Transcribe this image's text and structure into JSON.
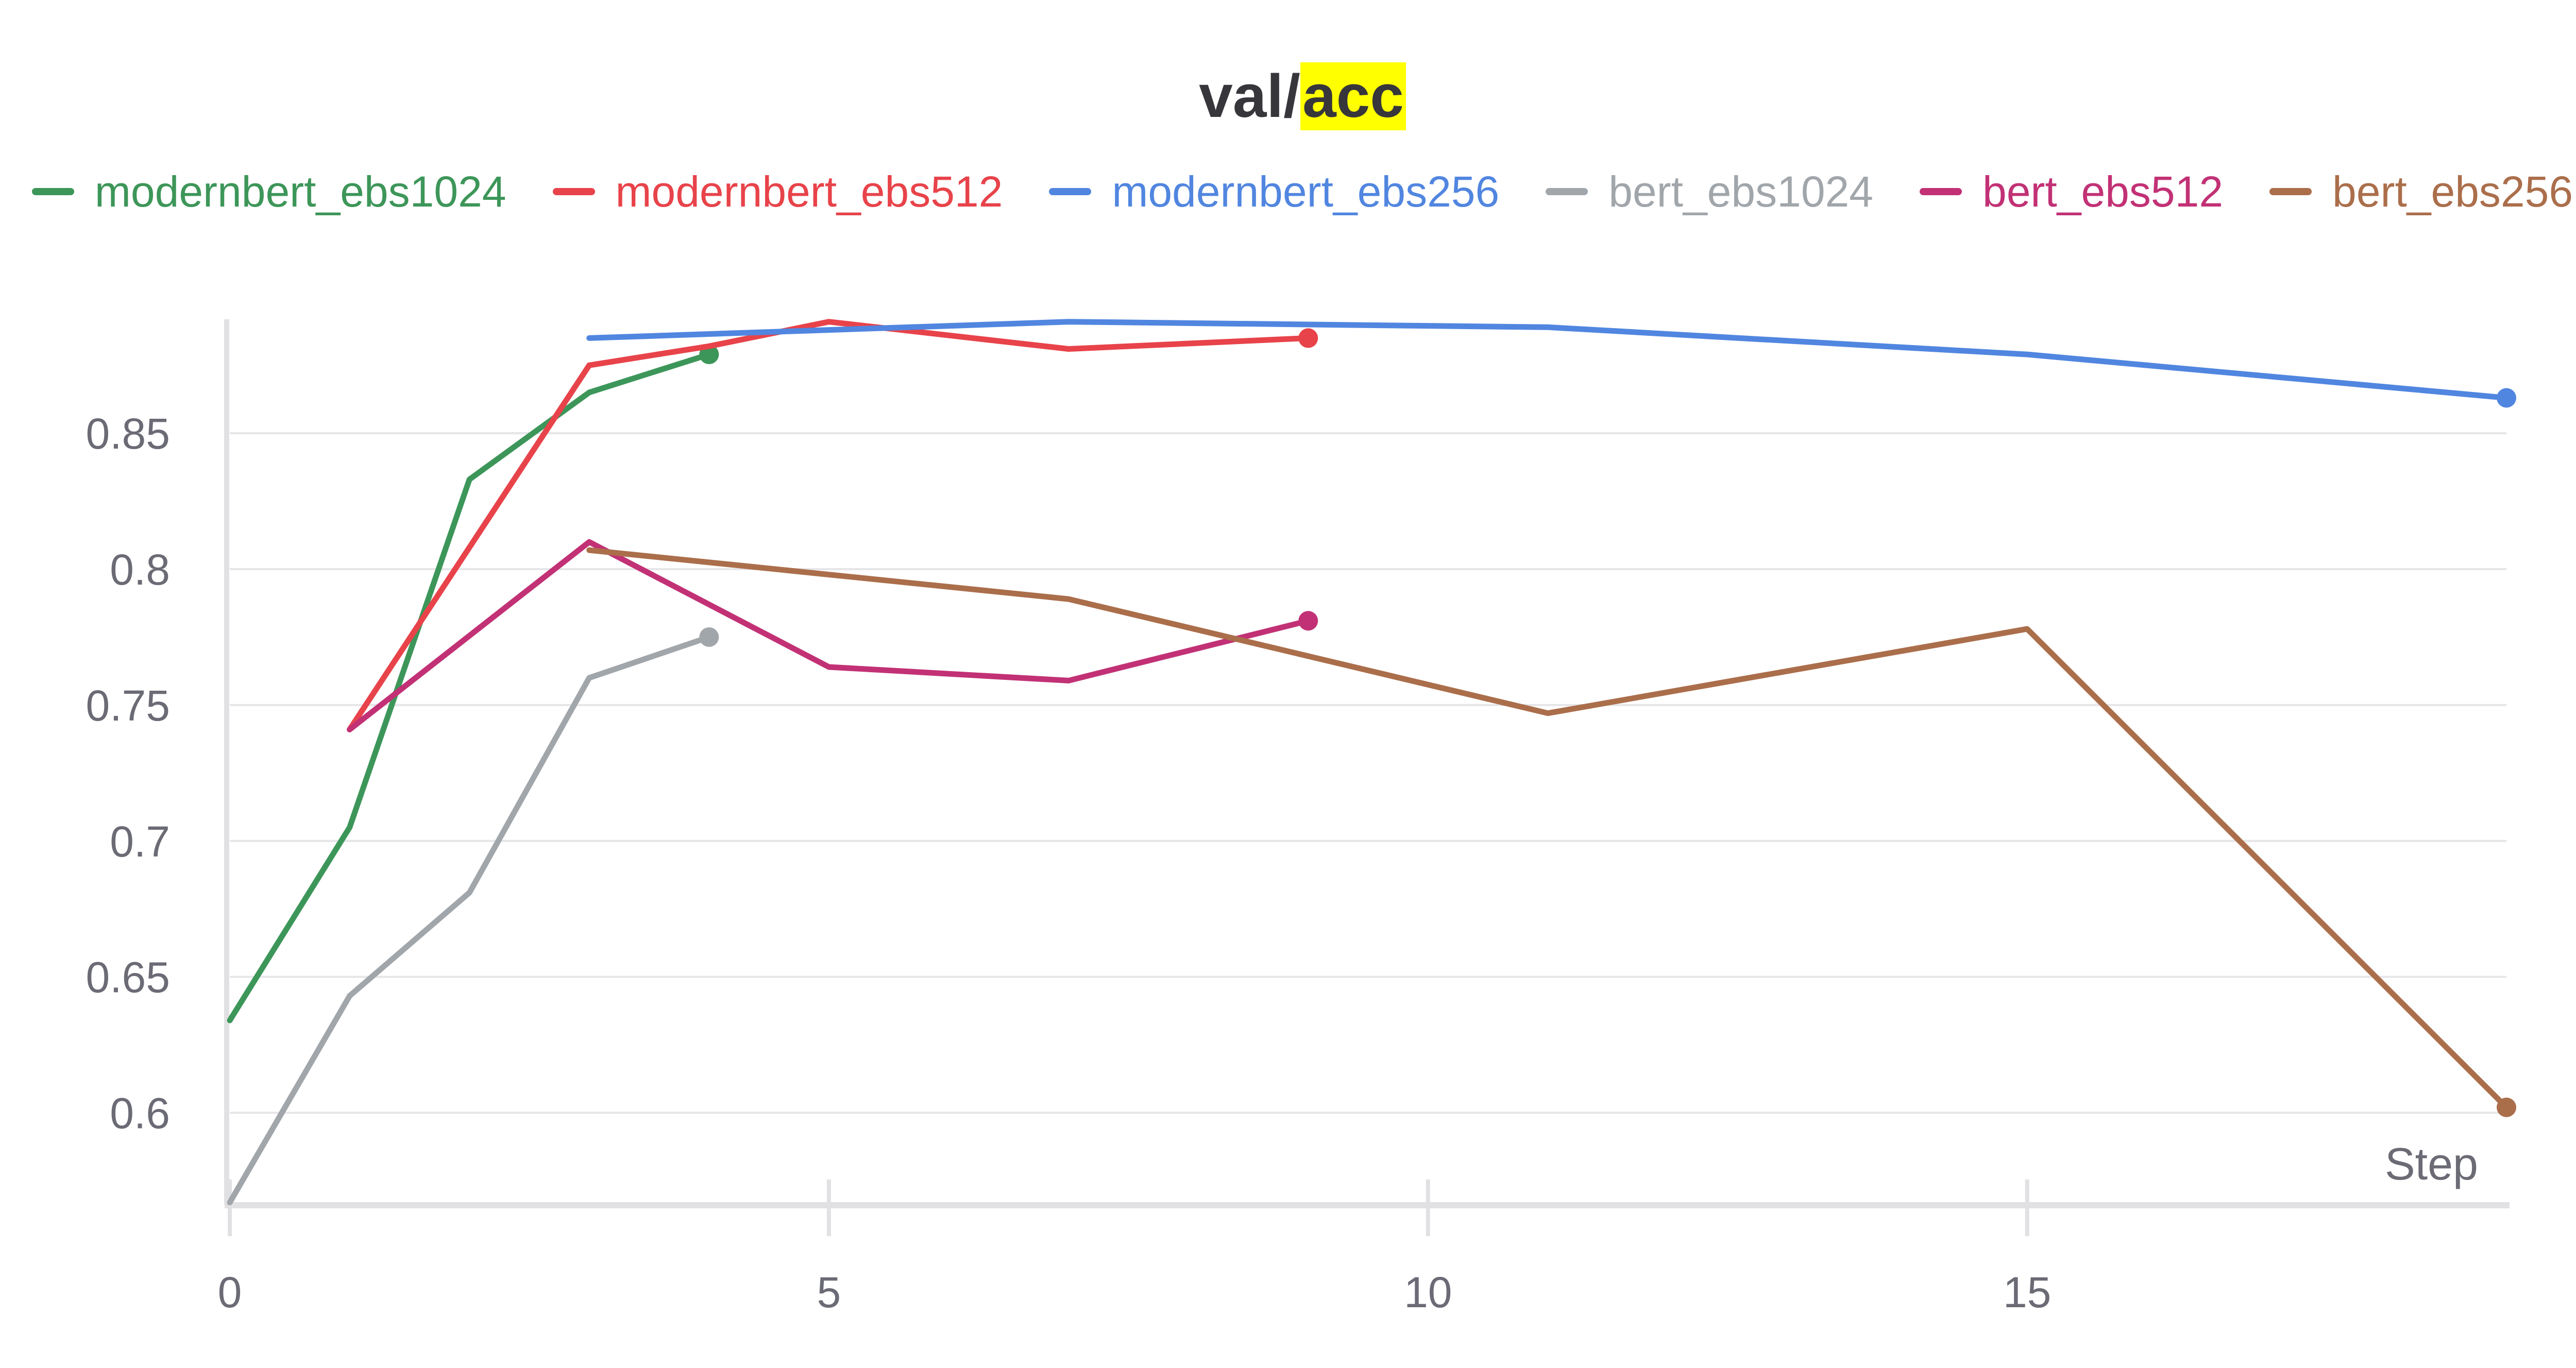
{
  "chart_data": {
    "type": "line",
    "title_prefix": "val/",
    "title_highlight": "acc",
    "xlabel": "Step",
    "ylabel": "",
    "xlim": [
      0,
      19
    ],
    "ylim": [
      0.566,
      0.89
    ],
    "xticks": [
      0,
      5,
      10,
      15
    ],
    "yticks": [
      0.6,
      0.65,
      0.7,
      0.75,
      0.8,
      0.85
    ],
    "ytick_labels": [
      "0.6",
      "0.65",
      "0.7",
      "0.75",
      "0.8",
      "0.85"
    ],
    "grid": true,
    "legend_position": "top-center",
    "series": [
      {
        "name": "modernbert_ebs1024",
        "color": "#3d9659",
        "x": [
          0,
          1,
          2,
          3,
          4
        ],
        "y": [
          0.634,
          0.705,
          0.833,
          0.865,
          0.879
        ]
      },
      {
        "name": "modernbert_ebs512",
        "color": "#e8434a",
        "x": [
          1,
          3,
          4,
          5,
          7,
          9
        ],
        "y": [
          0.741,
          0.875,
          0.882,
          0.891,
          0.881,
          0.885
        ]
      },
      {
        "name": "modernbert_ebs256",
        "color": "#5186e0",
        "x": [
          3,
          5,
          7,
          11,
          15,
          19
        ],
        "y": [
          0.885,
          0.888,
          0.891,
          0.889,
          0.879,
          0.863
        ]
      },
      {
        "name": "bert_ebs1024",
        "color": "#a1a6ab",
        "x": [
          0,
          1,
          2,
          3,
          4
        ],
        "y": [
          0.567,
          0.643,
          0.681,
          0.76,
          0.775
        ]
      },
      {
        "name": "bert_ebs512",
        "color": "#c23175",
        "x": [
          1,
          3,
          5,
          7,
          9
        ],
        "y": [
          0.741,
          0.81,
          0.764,
          0.759,
          0.781
        ]
      },
      {
        "name": "bert_ebs256",
        "color": "#ab6e4b",
        "x": [
          3,
          7,
          11,
          15,
          19
        ],
        "y": [
          0.807,
          0.789,
          0.747,
          0.778,
          0.602
        ]
      }
    ]
  }
}
